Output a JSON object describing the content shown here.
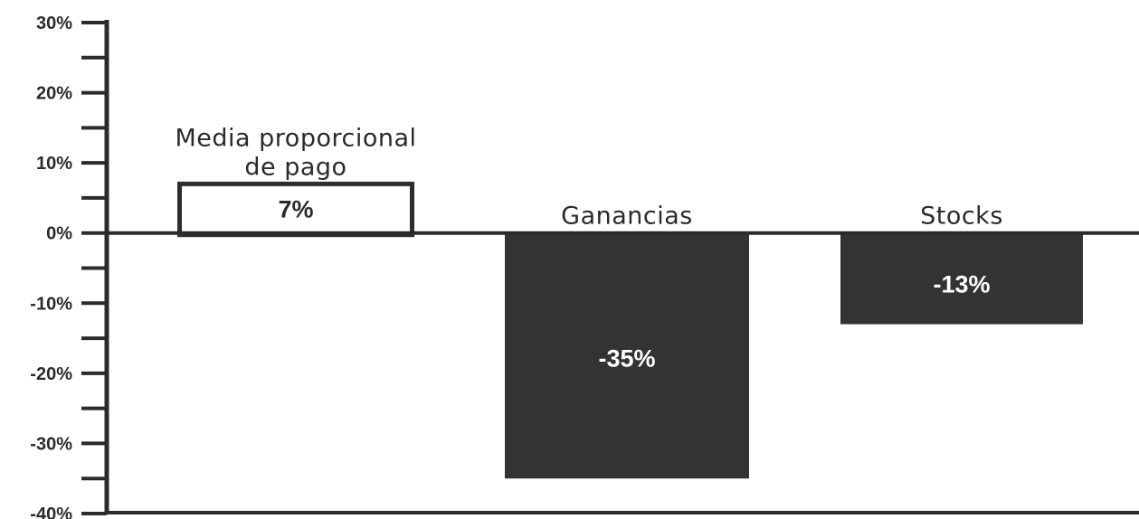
{
  "chart_data": {
    "type": "bar",
    "title": "",
    "xlabel": "",
    "ylabel": "",
    "ylim": [
      -40,
      30
    ],
    "yticks": [
      30,
      20,
      10,
      0,
      -10,
      -20,
      -30,
      -40
    ],
    "ytick_labels": [
      "30%",
      "20%",
      "10%",
      "0%",
      "-10%",
      "-20%",
      "-30%",
      "-40%"
    ],
    "grid": false,
    "legend": "none",
    "categories": [
      {
        "label_lines": [
          "Media proporcional",
          "de pago"
        ]
      },
      {
        "label_lines": [
          "Ganancias"
        ]
      },
      {
        "label_lines": [
          "Stocks"
        ]
      }
    ],
    "values": [
      7,
      -35,
      -13
    ],
    "data_labels": [
      "7%",
      "-35%",
      "-13%"
    ],
    "styles": [
      "outline",
      "filled",
      "filled"
    ],
    "colors": {
      "bar_fill": "#333333",
      "bar_outline": "#2e2e2e",
      "axis": "#2b2b2b",
      "label_on_dark": "#ffffff",
      "label_on_light": "#2b2b2b"
    }
  }
}
